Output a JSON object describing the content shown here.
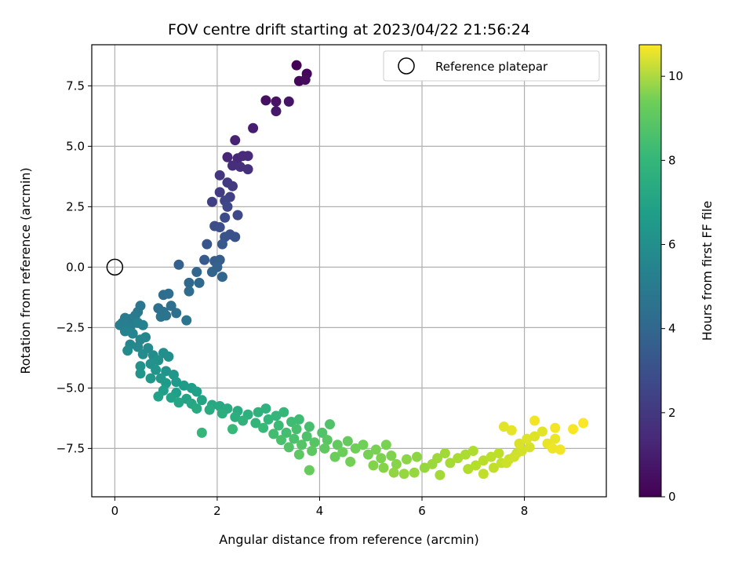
{
  "chart_data": {
    "type": "scatter",
    "title": "FOV centre drift starting at 2023/04/22 21:56:24",
    "xlabel": "Angular distance from reference (arcmin)",
    "ylabel": "Rotation from reference (arcmin)",
    "xlim": [
      -0.45,
      9.6
    ],
    "ylim": [
      -9.5,
      9.2
    ],
    "xticks": [
      0,
      2,
      4,
      6,
      8
    ],
    "xtick_labels": [
      "0",
      "2",
      "4",
      "6",
      "8"
    ],
    "yticks": [
      -7.5,
      -5.0,
      -2.5,
      0.0,
      2.5,
      5.0,
      7.5
    ],
    "ytick_labels": [
      "−7.5",
      "−5.0",
      "−2.5",
      "0.0",
      "2.5",
      "5.0",
      "7.5"
    ],
    "grid": true,
    "legend": {
      "position": "top-right",
      "entries": [
        {
          "label": "Reference platepar",
          "marker": "open-circle"
        }
      ]
    },
    "reference_point": {
      "x": 0,
      "y": 0
    },
    "colorbar": {
      "label": "Hours from first FF file",
      "colormap": "viridis",
      "range": [
        0,
        10.75
      ],
      "ticks": [
        0,
        2,
        4,
        6,
        8,
        10
      ],
      "tick_labels": [
        "0",
        "2",
        "4",
        "6",
        "8",
        "10"
      ]
    },
    "points": [
      [
        3.55,
        8.35,
        0.05
      ],
      [
        3.75,
        8.0,
        0.15
      ],
      [
        3.6,
        7.7,
        0.2
      ],
      [
        3.72,
        7.75,
        0.3
      ],
      [
        2.95,
        6.9,
        0.45
      ],
      [
        3.15,
        6.85,
        0.55
      ],
      [
        3.4,
        6.85,
        0.6
      ],
      [
        3.15,
        6.45,
        0.7
      ],
      [
        2.7,
        5.75,
        0.9
      ],
      [
        2.35,
        5.25,
        1.0
      ],
      [
        2.2,
        4.55,
        1.15
      ],
      [
        2.4,
        4.5,
        1.2
      ],
      [
        2.5,
        4.6,
        1.25
      ],
      [
        2.6,
        4.6,
        1.3
      ],
      [
        2.3,
        4.2,
        1.4
      ],
      [
        2.45,
        4.15,
        1.45
      ],
      [
        2.6,
        4.05,
        1.5
      ],
      [
        2.05,
        3.8,
        1.7
      ],
      [
        2.2,
        3.5,
        1.8
      ],
      [
        2.3,
        3.35,
        1.85
      ],
      [
        2.05,
        3.1,
        1.95
      ],
      [
        2.25,
        2.9,
        2.05
      ],
      [
        1.9,
        2.7,
        2.1
      ],
      [
        2.15,
        2.75,
        2.2
      ],
      [
        2.2,
        2.5,
        2.3
      ],
      [
        2.4,
        2.15,
        2.4
      ],
      [
        2.15,
        2.05,
        2.45
      ],
      [
        1.95,
        1.7,
        2.55
      ],
      [
        2.05,
        1.65,
        2.6
      ],
      [
        2.25,
        1.35,
        2.7
      ],
      [
        2.35,
        1.25,
        2.75
      ],
      [
        2.15,
        1.25,
        2.8
      ],
      [
        1.8,
        0.95,
        2.9
      ],
      [
        2.1,
        0.95,
        3.0
      ],
      [
        1.75,
        0.3,
        3.1
      ],
      [
        1.95,
        0.25,
        3.15
      ],
      [
        2.05,
        0.3,
        3.2
      ],
      [
        1.25,
        0.1,
        3.3
      ],
      [
        2.0,
        0.0,
        3.35
      ],
      [
        1.9,
        -0.2,
        3.45
      ],
      [
        1.6,
        -0.2,
        3.5
      ],
      [
        2.1,
        -0.4,
        3.55
      ],
      [
        1.45,
        -0.65,
        3.6
      ],
      [
        1.65,
        -0.65,
        3.65
      ],
      [
        1.45,
        -1.0,
        3.75
      ],
      [
        0.95,
        -1.15,
        3.8
      ],
      [
        1.05,
        -1.1,
        3.85
      ],
      [
        0.85,
        -1.7,
        3.9
      ],
      [
        1.1,
        -1.6,
        3.95
      ],
      [
        1.2,
        -1.9,
        4.0
      ],
      [
        0.95,
        -1.85,
        4.05
      ],
      [
        0.9,
        -2.05,
        4.1
      ],
      [
        1.0,
        -2.0,
        4.15
      ],
      [
        1.4,
        -2.2,
        4.2
      ],
      [
        0.5,
        -1.6,
        4.25
      ],
      [
        0.45,
        -1.85,
        4.3
      ],
      [
        0.4,
        -2.0,
        4.35
      ],
      [
        0.3,
        -2.15,
        4.45
      ],
      [
        0.2,
        -2.1,
        4.5
      ],
      [
        0.15,
        -2.3,
        4.55
      ],
      [
        0.1,
        -2.4,
        4.6
      ],
      [
        0.3,
        -2.5,
        4.65
      ],
      [
        0.45,
        -2.3,
        4.7
      ],
      [
        0.55,
        -2.4,
        4.75
      ],
      [
        0.2,
        -2.65,
        4.8
      ],
      [
        0.35,
        -2.75,
        4.85
      ],
      [
        0.6,
        -2.9,
        4.9
      ],
      [
        0.5,
        -3.0,
        4.95
      ],
      [
        0.3,
        -3.2,
        5.0
      ],
      [
        0.45,
        -3.3,
        5.05
      ],
      [
        0.65,
        -3.35,
        5.1
      ],
      [
        0.25,
        -3.45,
        5.15
      ],
      [
        0.55,
        -3.6,
        5.2
      ],
      [
        0.75,
        -3.65,
        5.25
      ],
      [
        0.95,
        -3.55,
        5.3
      ],
      [
        1.05,
        -3.7,
        5.35
      ],
      [
        0.85,
        -3.85,
        5.4
      ],
      [
        0.7,
        -4.0,
        5.45
      ],
      [
        0.5,
        -4.1,
        5.5
      ],
      [
        0.8,
        -4.25,
        5.55
      ],
      [
        1.0,
        -4.3,
        5.6
      ],
      [
        0.5,
        -4.4,
        5.6
      ],
      [
        1.15,
        -4.45,
        5.65
      ],
      [
        0.9,
        -4.6,
        5.7
      ],
      [
        0.7,
        -4.6,
        5.75
      ],
      [
        1.2,
        -4.75,
        5.8
      ],
      [
        1.0,
        -4.8,
        5.85
      ],
      [
        1.35,
        -4.9,
        5.9
      ],
      [
        1.5,
        -5.0,
        5.95
      ],
      [
        0.95,
        -5.1,
        6.0
      ],
      [
        1.2,
        -5.2,
        6.0
      ],
      [
        1.6,
        -5.15,
        6.05
      ],
      [
        0.85,
        -5.35,
        6.1
      ],
      [
        1.1,
        -5.4,
        6.15
      ],
      [
        1.4,
        -5.45,
        6.2
      ],
      [
        1.7,
        -5.5,
        6.25
      ],
      [
        1.25,
        -5.6,
        6.3
      ],
      [
        1.5,
        -5.65,
        6.35
      ],
      [
        1.9,
        -5.7,
        6.4
      ],
      [
        2.05,
        -5.75,
        6.45
      ],
      [
        1.6,
        -5.85,
        6.5
      ],
      [
        1.85,
        -5.9,
        6.55
      ],
      [
        2.2,
        -5.85,
        6.6
      ],
      [
        2.4,
        -5.95,
        6.65
      ],
      [
        2.1,
        -6.05,
        6.7
      ],
      [
        2.35,
        -6.2,
        6.75
      ],
      [
        2.6,
        -6.1,
        6.8
      ],
      [
        2.8,
        -6.0,
        6.85
      ],
      [
        2.95,
        -5.85,
        6.9
      ],
      [
        2.5,
        -6.35,
        6.95
      ],
      [
        2.75,
        -6.45,
        7.0
      ],
      [
        3.0,
        -6.3,
        7.05
      ],
      [
        3.15,
        -6.15,
        7.1
      ],
      [
        3.3,
        -6.0,
        7.15
      ],
      [
        1.7,
        -6.85,
        7.1
      ],
      [
        2.3,
        -6.7,
        7.2
      ],
      [
        2.9,
        -6.65,
        7.25
      ],
      [
        3.2,
        -6.55,
        7.3
      ],
      [
        3.45,
        -6.4,
        7.35
      ],
      [
        3.6,
        -6.3,
        7.4
      ],
      [
        3.1,
        -6.9,
        7.45
      ],
      [
        3.35,
        -6.85,
        7.5
      ],
      [
        3.55,
        -6.7,
        7.55
      ],
      [
        3.8,
        -6.6,
        7.55
      ],
      [
        3.25,
        -7.15,
        7.6
      ],
      [
        3.5,
        -7.1,
        7.65
      ],
      [
        3.75,
        -7.0,
        7.7
      ],
      [
        4.05,
        -6.85,
        7.75
      ],
      [
        4.2,
        -6.5,
        7.75
      ],
      [
        3.4,
        -7.45,
        7.8
      ],
      [
        3.65,
        -7.35,
        7.85
      ],
      [
        3.9,
        -7.25,
        7.9
      ],
      [
        4.15,
        -7.15,
        7.95
      ],
      [
        3.6,
        -7.75,
        8.0
      ],
      [
        3.85,
        -7.6,
        8.0
      ],
      [
        4.1,
        -7.5,
        8.05
      ],
      [
        4.35,
        -7.35,
        8.1
      ],
      [
        4.55,
        -7.2,
        8.15
      ],
      [
        3.8,
        -8.4,
        8.2
      ],
      [
        4.3,
        -7.85,
        8.25
      ],
      [
        4.45,
        -7.65,
        8.3
      ],
      [
        4.7,
        -7.5,
        8.35
      ],
      [
        4.85,
        -7.35,
        8.4
      ],
      [
        4.6,
        -8.05,
        8.45
      ],
      [
        4.95,
        -7.75,
        8.5
      ],
      [
        5.1,
        -7.55,
        8.55
      ],
      [
        5.3,
        -7.35,
        8.55
      ],
      [
        5.2,
        -7.9,
        8.6
      ],
      [
        5.4,
        -7.8,
        8.65
      ],
      [
        5.05,
        -8.2,
        8.7
      ],
      [
        5.25,
        -8.3,
        8.75
      ],
      [
        5.5,
        -8.15,
        8.8
      ],
      [
        5.7,
        -7.95,
        8.85
      ],
      [
        5.9,
        -7.85,
        8.9
      ],
      [
        5.45,
        -8.5,
        8.95
      ],
      [
        5.65,
        -8.55,
        9.0
      ],
      [
        5.85,
        -8.5,
        9.05
      ],
      [
        6.05,
        -8.3,
        9.05
      ],
      [
        6.2,
        -8.15,
        9.1
      ],
      [
        6.3,
        -7.9,
        9.15
      ],
      [
        6.45,
        -7.7,
        9.2
      ],
      [
        6.35,
        -8.6,
        9.25
      ],
      [
        6.55,
        -8.1,
        9.3
      ],
      [
        6.7,
        -7.9,
        9.35
      ],
      [
        6.85,
        -7.75,
        9.4
      ],
      [
        7.0,
        -7.6,
        9.45
      ],
      [
        6.9,
        -8.35,
        9.5
      ],
      [
        7.05,
        -8.2,
        9.55
      ],
      [
        7.2,
        -8.0,
        9.6
      ],
      [
        7.35,
        -7.85,
        9.65
      ],
      [
        7.5,
        -7.7,
        9.7
      ],
      [
        7.2,
        -8.55,
        9.75
      ],
      [
        7.4,
        -8.3,
        9.75
      ],
      [
        7.55,
        -8.1,
        9.8
      ],
      [
        7.7,
        -7.95,
        9.85
      ],
      [
        7.85,
        -7.7,
        9.9
      ],
      [
        7.65,
        -8.1,
        9.95
      ],
      [
        7.8,
        -7.85,
        10.0
      ],
      [
        7.95,
        -7.6,
        10.05
      ],
      [
        8.1,
        -7.45,
        10.1
      ],
      [
        7.9,
        -7.3,
        10.15
      ],
      [
        8.05,
        -7.1,
        10.2
      ],
      [
        8.2,
        -7.0,
        10.25
      ],
      [
        8.35,
        -6.8,
        10.3
      ],
      [
        7.6,
        -6.6,
        10.3
      ],
      [
        7.75,
        -6.75,
        10.35
      ],
      [
        8.45,
        -7.3,
        10.4
      ],
      [
        8.6,
        -7.1,
        10.45
      ],
      [
        8.55,
        -7.5,
        10.5
      ],
      [
        8.7,
        -7.55,
        10.55
      ],
      [
        8.2,
        -6.35,
        10.55
      ],
      [
        8.6,
        -6.65,
        10.6
      ],
      [
        8.95,
        -6.7,
        10.65
      ],
      [
        9.15,
        -6.45,
        10.7
      ]
    ]
  }
}
